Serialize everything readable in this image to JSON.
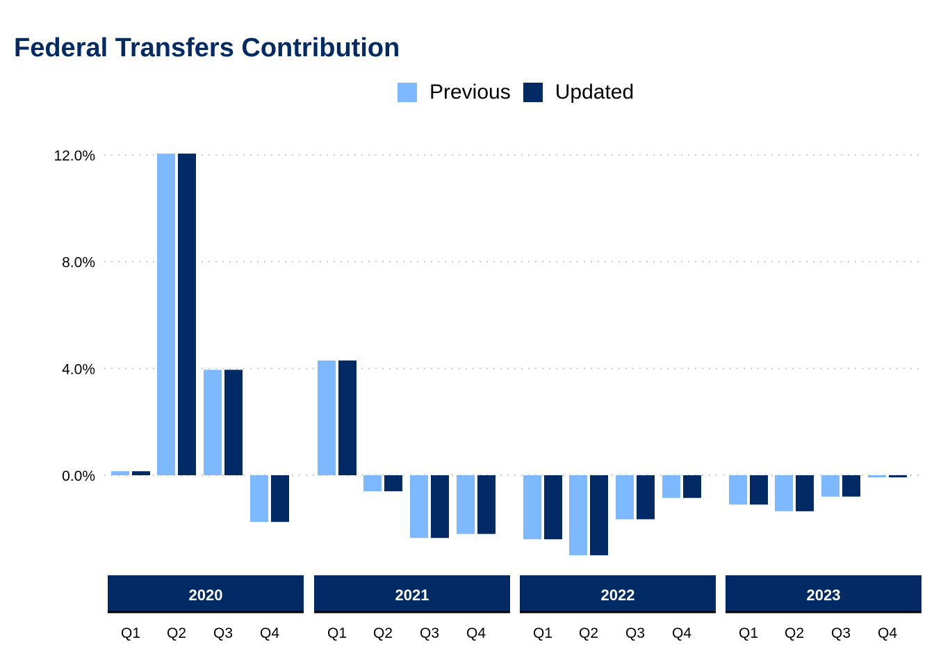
{
  "chart_data": {
    "type": "bar",
    "title": "Federal Transfers Contribution",
    "xlabel": "",
    "ylabel": "",
    "ylim": [
      -3.6,
      12.8
    ],
    "yticks": [
      0,
      4,
      8,
      12
    ],
    "ytick_labels": [
      "0.0%",
      "4.0%",
      "8.0%",
      "12.0%"
    ],
    "grid": "horizontal dotted",
    "legend_position": "top",
    "colors": {
      "Previous": "#7EB8FF",
      "Updated": "#022B66",
      "strip": "#022B66",
      "title": "#022B66"
    },
    "panels": [
      {
        "year": "2020",
        "categories": [
          "Q1",
          "Q2",
          "Q3",
          "Q4"
        ],
        "series": [
          {
            "name": "Previous",
            "values": [
              0.15,
              12.05,
              3.95,
              -1.75
            ]
          },
          {
            "name": "Updated",
            "values": [
              0.15,
              12.05,
              3.95,
              -1.75
            ]
          }
        ]
      },
      {
        "year": "2021",
        "categories": [
          "Q1",
          "Q2",
          "Q3",
          "Q4"
        ],
        "series": [
          {
            "name": "Previous",
            "values": [
              4.3,
              -0.6,
              -2.35,
              -2.2
            ]
          },
          {
            "name": "Updated",
            "values": [
              4.3,
              -0.6,
              -2.35,
              -2.2
            ]
          }
        ]
      },
      {
        "year": "2022",
        "categories": [
          "Q1",
          "Q2",
          "Q3",
          "Q4"
        ],
        "series": [
          {
            "name": "Previous",
            "values": [
              -2.4,
              -3.0,
              -1.65,
              -0.85
            ]
          },
          {
            "name": "Updated",
            "values": [
              -2.4,
              -3.0,
              -1.65,
              -0.85
            ]
          }
        ]
      },
      {
        "year": "2023",
        "categories": [
          "Q1",
          "Q2",
          "Q3",
          "Q4"
        ],
        "series": [
          {
            "name": "Previous",
            "values": [
              -1.1,
              -1.35,
              -0.8,
              -0.08
            ]
          },
          {
            "name": "Updated",
            "values": [
              -1.1,
              -1.35,
              -0.8,
              -0.08
            ]
          }
        ]
      }
    ]
  },
  "legend": [
    {
      "label": "Previous",
      "color": "#7EB8FF"
    },
    {
      "label": "Updated",
      "color": "#022B66"
    }
  ]
}
